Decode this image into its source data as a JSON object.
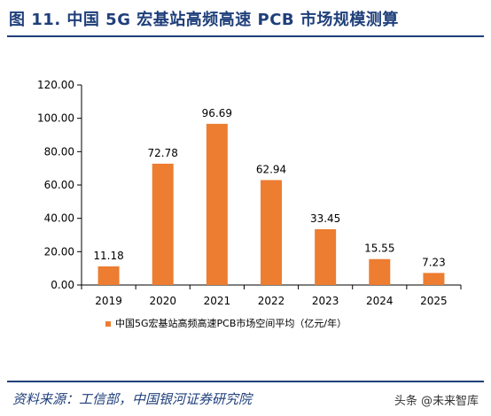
{
  "figure": {
    "title": "图 11. 中国 5G 宏基站高频高速 PCB 市场规模测算",
    "source": "资料来源：工信部，中国银河证券研究院",
    "watermark": "头条 @未来智库"
  },
  "colors": {
    "bar": "#ED7D31",
    "accent": "#1F3F7A"
  },
  "chart_data": {
    "type": "bar",
    "categories": [
      "2019",
      "2020",
      "2021",
      "2022",
      "2023",
      "2024",
      "2025"
    ],
    "series": [
      {
        "name": "中国5G宏基站高频高速PCB市场空间平均（亿元/年）",
        "values": [
          11.18,
          72.78,
          96.69,
          62.94,
          33.45,
          15.55,
          7.23
        ]
      }
    ],
    "ylim": [
      0,
      120
    ],
    "yticks": [
      0,
      20,
      40,
      60,
      80,
      100,
      120
    ],
    "ytick_labels": [
      "0.00",
      "20.00",
      "40.00",
      "60.00",
      "80.00",
      "100.00",
      "120.00"
    ],
    "data_labels": [
      "11.18",
      "72.78",
      "96.69",
      "62.94",
      "33.45",
      "15.55",
      "7.23"
    ],
    "grid": false,
    "legend": "bottom"
  }
}
